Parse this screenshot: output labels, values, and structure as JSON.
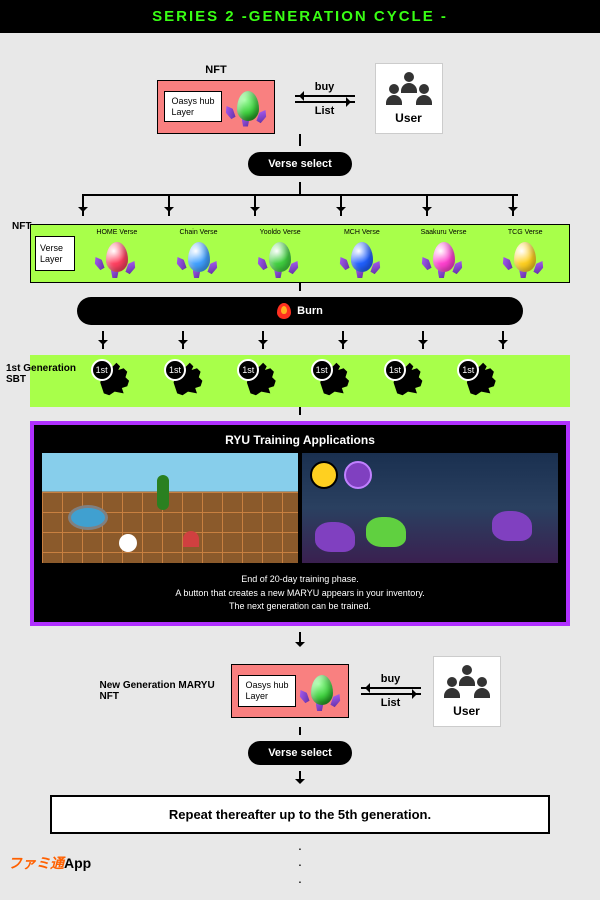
{
  "header": "SERIES 2  -GENERATION CYCLE -",
  "colors": {
    "header_bg": "#000000",
    "header_text": "#39ff14",
    "page_bg": "#e8e8e8",
    "oasys_bg": "#f98080",
    "lime": "#a8ff4a",
    "pill_bg": "#000000",
    "purple_border": "#b030ff"
  },
  "top": {
    "nft_label": "NFT",
    "oasys_line1": "Oasys hub",
    "oasys_line2": "Layer",
    "egg_color": "#40d040",
    "buy": "buy",
    "list": "List",
    "user": "User"
  },
  "verse_select": "Verse select",
  "nft_side": "NFT",
  "verse_layer_line1": "Verse",
  "verse_layer_line2": "Layer",
  "verses": [
    {
      "name": "HOME Verse",
      "color": "#ff4060"
    },
    {
      "name": "Chain Verse",
      "color": "#40a0ff"
    },
    {
      "name": "Yooldo Verse",
      "color": "#40d040"
    },
    {
      "name": "MCH Verse",
      "color": "#2060ff"
    },
    {
      "name": "Saakuru Verse",
      "color": "#ff40d0"
    },
    {
      "name": "TCG Verse",
      "color": "#ffd020"
    }
  ],
  "burn": "Burn",
  "sbt_label": "1st Generation\nSBT",
  "sbt_badge": "1st",
  "sbt_count": 6,
  "training": {
    "title": "RYU Training Applications",
    "line1": "End of 20-day training phase.",
    "line2": "A button that creates a new MARYU appears in your inventory.",
    "line3": "The next generation can be trained."
  },
  "new_gen_label": "New Generation MARYU\nNFT",
  "repeat": "Repeat thereafter up to the 5th generation.",
  "watermark_jp": "ファミ通",
  "watermark_app": "App"
}
